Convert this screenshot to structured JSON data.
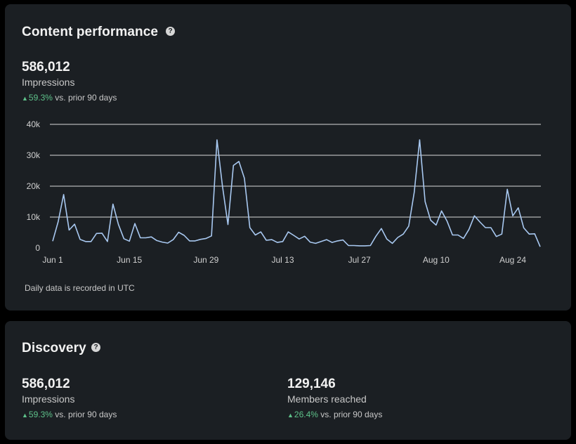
{
  "content_performance": {
    "title": "Content performance",
    "impressions_value": "586,012",
    "impressions_label": "Impressions",
    "delta_pct": "59.3%",
    "delta_text": "vs. prior 90 days",
    "footnote": "Daily data is recorded in UTC",
    "help_icon": "question-circle-icon",
    "line_color": "#a8c8f0",
    "delta_color": "#5ec28a"
  },
  "discovery": {
    "title": "Discovery",
    "help_icon": "question-circle-icon",
    "impressions": {
      "value": "586,012",
      "label": "Impressions",
      "delta_pct": "59.3%",
      "delta_text": "vs. prior 90 days"
    },
    "members_reached": {
      "value": "129,146",
      "label": "Members reached",
      "delta_pct": "26.4%",
      "delta_text": "vs. prior 90 days"
    }
  },
  "chart_data": {
    "type": "line",
    "title": "",
    "xlabel": "",
    "ylabel": "",
    "ylim": [
      0,
      40000
    ],
    "yticks": [
      0,
      10000,
      20000,
      30000,
      40000
    ],
    "ytick_labels": [
      "0",
      "10k",
      "20k",
      "30k",
      "40k"
    ],
    "xtick_labels": [
      "Jun 1",
      "Jun 15",
      "Jun 29",
      "Jul 13",
      "Jul 27",
      "Aug 10",
      "Aug 24"
    ],
    "xtick_days": [
      0,
      14,
      28,
      42,
      56,
      70,
      84
    ],
    "grid": true,
    "x_day_offset": "days from Jun 1",
    "series": [
      {
        "values": [
          2200,
          8500,
          17300,
          5800,
          7700,
          2800,
          2100,
          2100,
          4700,
          4800,
          2100,
          14200,
          7600,
          3000,
          2200,
          7900,
          3300,
          3300,
          3600,
          2400,
          1900,
          1600,
          2700,
          5100,
          4100,
          2300,
          2300,
          2800,
          3100,
          3900,
          35000,
          20000,
          7600,
          26700,
          28000,
          22600,
          6600,
          4200,
          5200,
          2500,
          2700,
          1800,
          2100,
          5200,
          4100,
          2900,
          3800,
          1900,
          1500,
          2100,
          2700,
          1800,
          2300,
          2600,
          800,
          800,
          700,
          700,
          800,
          3800,
          6300,
          2900,
          1500,
          3400,
          4500,
          7100,
          18000,
          35000,
          15000,
          9000,
          7400,
          12000,
          8700,
          4200,
          4200,
          3100,
          6000,
          10400,
          8400,
          6600,
          6600,
          3700,
          4500,
          19000,
          10400,
          13000,
          6500,
          4500,
          4600,
          400
        ]
      }
    ]
  }
}
